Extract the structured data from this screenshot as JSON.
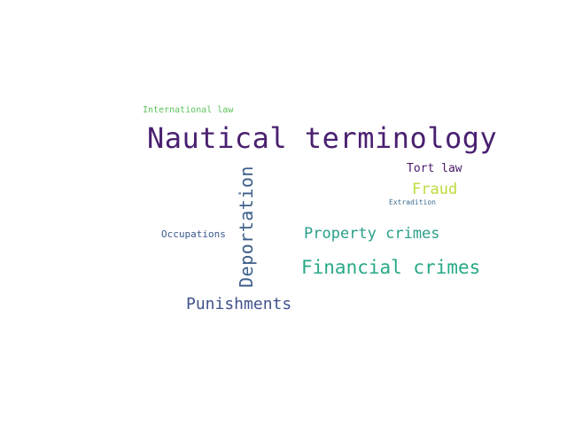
{
  "words": [
    {
      "key": "nautical",
      "text": "Nautical terminology",
      "color": "#4a2070"
    },
    {
      "key": "deport",
      "text": "Deportation",
      "color": "#3e5f8a"
    },
    {
      "key": "financial",
      "text": "Financial crimes",
      "color": "#27a987"
    },
    {
      "key": "property",
      "text": "Property crimes",
      "color": "#29a089"
    },
    {
      "key": "punish",
      "text": "Punishments",
      "color": "#41538d"
    },
    {
      "key": "fraud",
      "text": "Fraud",
      "color": "#bcdc3c"
    },
    {
      "key": "tort",
      "text": "Tort law",
      "color": "#4b1a6a"
    },
    {
      "key": "intl",
      "text": "International law",
      "color": "#5bc35a"
    },
    {
      "key": "occup",
      "text": "Occupations",
      "color": "#3a5a8c"
    },
    {
      "key": "extrad",
      "text": "Extradition",
      "color": "#3c6e90"
    }
  ]
}
